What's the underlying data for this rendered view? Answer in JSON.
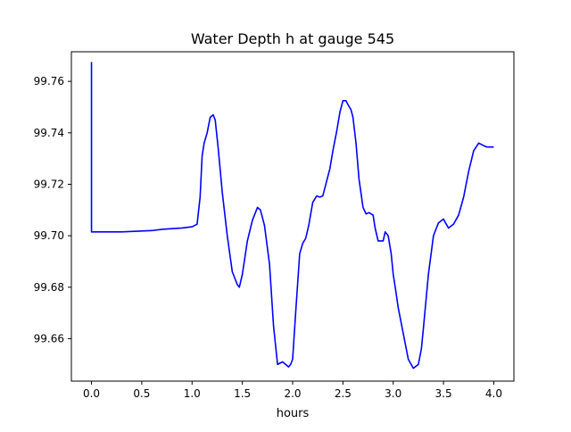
{
  "chart_data": {
    "type": "line",
    "title": "Water Depth h at gauge 545",
    "xlabel": "hours",
    "ylabel": "",
    "xlim": [
      -0.2,
      4.2
    ],
    "ylim": [
      99.6435,
      99.7715
    ],
    "xticks": [
      0.0,
      0.5,
      1.0,
      1.5,
      2.0,
      2.5,
      3.0,
      3.5,
      4.0
    ],
    "xtick_labels": [
      "0.0",
      "0.5",
      "1.0",
      "1.5",
      "2.0",
      "2.5",
      "3.0",
      "3.5",
      "4.0"
    ],
    "yticks": [
      99.66,
      99.68,
      99.7,
      99.72,
      99.74,
      99.76
    ],
    "ytick_labels": [
      "99.66",
      "99.68",
      "99.70",
      "99.72",
      "99.74",
      "99.76"
    ],
    "grid": false,
    "series": [
      {
        "color": "#0000ff",
        "x": [
          0.0,
          0.0,
          0.3,
          0.6,
          0.7,
          0.9,
          1.0,
          1.05,
          1.08,
          1.1,
          1.12,
          1.15,
          1.18,
          1.21,
          1.23,
          1.26,
          1.3,
          1.35,
          1.4,
          1.45,
          1.47,
          1.5,
          1.55,
          1.6,
          1.65,
          1.68,
          1.72,
          1.77,
          1.81,
          1.85,
          1.9,
          1.93,
          1.96,
          1.98,
          2.0,
          2.03,
          2.07,
          2.1,
          2.13,
          2.16,
          2.2,
          2.24,
          2.27,
          2.3,
          2.33,
          2.37,
          2.4,
          2.44,
          2.47,
          2.5,
          2.53,
          2.55,
          2.58,
          2.6,
          2.63,
          2.66,
          2.7,
          2.73,
          2.76,
          2.8,
          2.82,
          2.85,
          2.9,
          2.92,
          2.95,
          2.98,
          3.0,
          3.02,
          3.05,
          3.1,
          3.15,
          3.2,
          3.25,
          3.28,
          3.3,
          3.35,
          3.4,
          3.45,
          3.5,
          3.52,
          3.55,
          3.6,
          3.65,
          3.7,
          3.75,
          3.8,
          3.85,
          3.9,
          3.93,
          3.96,
          4.0
        ],
        "y": [
          99.7675,
          99.7015,
          99.7015,
          99.702,
          99.7025,
          99.703,
          99.7035,
          99.7045,
          99.715,
          99.731,
          99.736,
          99.74,
          99.746,
          99.747,
          99.745,
          99.734,
          99.717,
          99.7,
          99.686,
          99.681,
          99.68,
          99.685,
          99.698,
          99.706,
          99.711,
          99.71,
          99.704,
          99.689,
          99.665,
          99.65,
          99.651,
          99.65,
          99.649,
          99.65,
          99.652,
          99.67,
          99.693,
          99.697,
          99.699,
          99.704,
          99.713,
          99.7155,
          99.715,
          99.7155,
          99.72,
          99.726,
          99.733,
          99.741,
          99.748,
          99.7525,
          99.7525,
          99.751,
          99.749,
          99.746,
          99.736,
          99.722,
          99.711,
          99.7085,
          99.709,
          99.708,
          99.703,
          99.698,
          99.698,
          99.7015,
          99.7,
          99.693,
          99.685,
          99.68,
          99.672,
          99.662,
          99.652,
          99.6485,
          99.65,
          99.656,
          99.664,
          99.685,
          99.7,
          99.705,
          99.7065,
          99.705,
          99.703,
          99.7045,
          99.708,
          99.715,
          99.725,
          99.733,
          99.736,
          99.735,
          99.7345,
          99.7345,
          99.7345
        ]
      }
    ]
  }
}
